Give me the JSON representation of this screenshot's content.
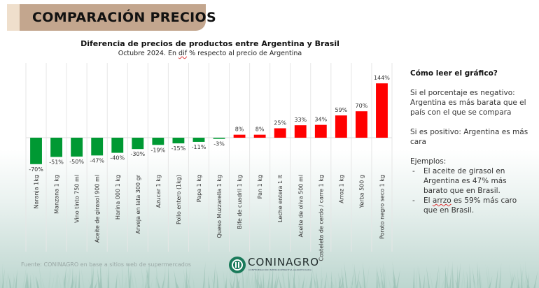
{
  "banner": {
    "title": "COMPARACIÓN PRECIOS"
  },
  "colors": {
    "negative": "#009933",
    "positive": "#ff0000",
    "banner": "#c3a68e",
    "banner_accent": "#efdfcc"
  },
  "chart_data": {
    "type": "bar",
    "title": "Diferencia de precios de productos entre Argentina y Brasil",
    "subtitle_before": "Octubre 2024. En ",
    "subtitle_dif": "dif",
    "subtitle_after": " % respecto al precio de Argentina",
    "xlabel": "",
    "ylabel": "",
    "ylim": [
      -90,
      150
    ],
    "grid": "vertical",
    "value_suffix": "%",
    "categories": [
      "Naranja 1kg",
      "Manzana 1 kg",
      "Vino tinto 750 ml",
      "Aceite de girasol 900 ml",
      "Harina 000 1 kg",
      "Arveja en lata 300 gr",
      "Azucar 1 kg",
      "Pollo entero (1kg)",
      "Papa 1 kg",
      "Queso Muzzarella 1 kg",
      "Bife de cuadril 1 kg",
      "Pan 1 kg",
      "Leche entera 1 lt",
      "Aceite de oliva 500 ml",
      "Costeleta de cerdo / carre 1 kg",
      "Arroz 1 kg",
      "Yerba 500 g",
      "Poroto negro seco 1 kg"
    ],
    "values": [
      -70,
      -51,
      -50,
      -47,
      -40,
      -30,
      -19,
      -15,
      -11,
      -3,
      8,
      8,
      25,
      33,
      34,
      59,
      70,
      144
    ]
  },
  "side_panel": {
    "heading": "Cómo leer el gráfico?",
    "negative": "Si el porcentaje es negativo: Argentina es más barata que el país con el que se compara",
    "positive": "Si es positivo: Argentina es más cara",
    "examples_label": "Ejemplos:",
    "example1": "El aceite de girasol en Argentina es 47% más barato que en Brasil.",
    "example2_pre": "El ",
    "example2_word": "arrzo",
    "example2_post": " es 59% más caro que en Brasil."
  },
  "footer": {
    "source": "Fuente: CONINAGRO en base a sitios web de supermercados",
    "logo_name": "CONINAGRO",
    "logo_sub": "CONFEDERACIÓN INTERCOOPERATIVA AGROPECUARIA"
  }
}
